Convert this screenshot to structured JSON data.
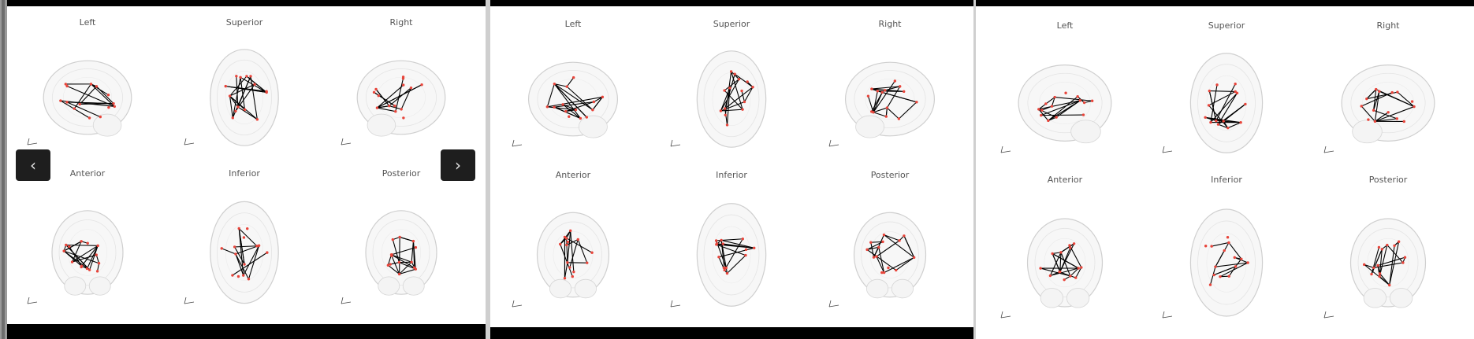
{
  "panels": [
    {
      "views": [
        {
          "label": "Left"
        },
        {
          "label": "Superior"
        },
        {
          "label": "Right"
        },
        {
          "label": "Anterior"
        },
        {
          "label": "Inferior"
        },
        {
          "label": "Posterior"
        }
      ]
    },
    {
      "views": [
        {
          "label": "Left"
        },
        {
          "label": "Superior"
        },
        {
          "label": "Right"
        },
        {
          "label": "Anterior"
        },
        {
          "label": "Inferior"
        },
        {
          "label": "Posterior"
        }
      ]
    },
    {
      "views": [
        {
          "label": "Left"
        },
        {
          "label": "Superior"
        },
        {
          "label": "Right"
        },
        {
          "label": "Anterior"
        },
        {
          "label": "Inferior"
        },
        {
          "label": "Posterior"
        }
      ]
    }
  ],
  "controls": {
    "prev_icon": "chevron-left-icon",
    "prev_glyph": "‹",
    "next_icon": "chevron-right-icon",
    "next_glyph": "›"
  },
  "colors": {
    "edge": "#000000",
    "node": "#e8443a",
    "brain_outline": "#cfcfcf",
    "bar": "#000000",
    "button": "#1e1e1e"
  }
}
